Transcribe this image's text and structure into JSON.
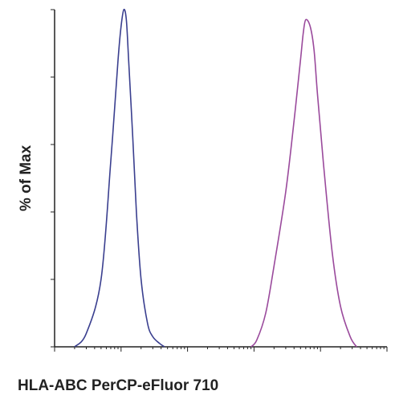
{
  "chart_data": {
    "type": "line",
    "title": "",
    "xlabel": "HLA-ABC PerCP-eFluor 710",
    "ylabel": "% of Max",
    "x_scale": "log",
    "xlim": [
      1,
      100000
    ],
    "ylim": [
      0,
      100
    ],
    "grid": false,
    "legend": "none",
    "series": [
      {
        "color": "#3a3f8f",
        "x": [
          2,
          3,
          5,
          7,
          9,
          10,
          11,
          12,
          13,
          15,
          17,
          20,
          25,
          30,
          38,
          45
        ],
        "y": [
          0,
          4,
          20,
          55,
          85,
          95,
          100,
          97,
          85,
          62,
          40,
          20,
          7,
          3,
          1,
          0
        ]
      },
      {
        "color": "#9a4a9c",
        "x": [
          900,
          1100,
          1500,
          2000,
          3000,
          4000,
          5000,
          5500,
          6000,
          7000,
          8000,
          9000,
          11000,
          15000,
          20000,
          28000,
          35000
        ],
        "y": [
          0,
          2,
          10,
          24,
          46,
          67,
          85,
          93,
          97,
          95,
          88,
          75,
          55,
          28,
          12,
          3,
          0
        ]
      }
    ]
  }
}
